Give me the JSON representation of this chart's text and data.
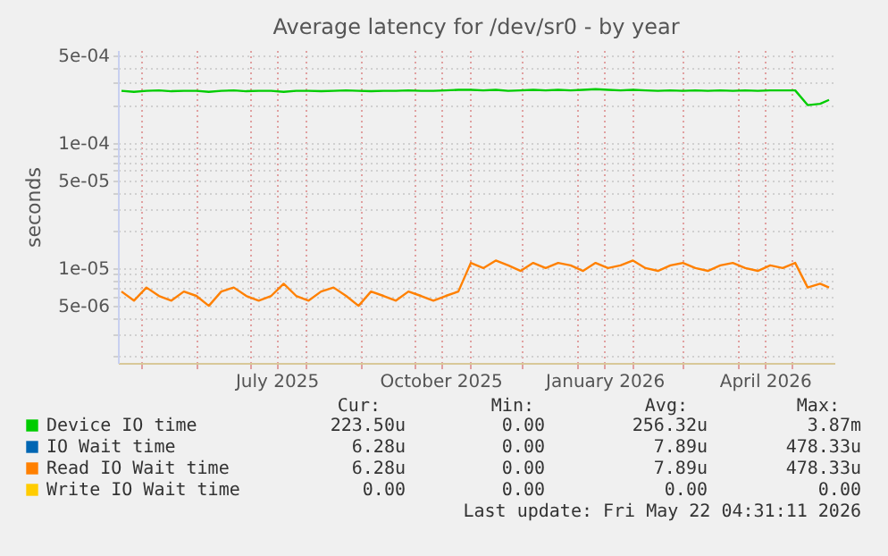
{
  "chart_data": {
    "type": "line",
    "title": "Average latency for /dev/sr0 - by year",
    "ylabel": "seconds",
    "x": [
      "2025-04-20",
      "2025-04-27",
      "2025-05-04",
      "2025-05-11",
      "2025-05-18",
      "2025-05-25",
      "2025-06-01",
      "2025-06-08",
      "2025-06-15",
      "2025-06-22",
      "2025-06-29",
      "2025-07-06",
      "2025-07-13",
      "2025-07-20",
      "2025-07-27",
      "2025-08-03",
      "2025-08-10",
      "2025-08-17",
      "2025-08-24",
      "2025-08-31",
      "2025-09-07",
      "2025-09-14",
      "2025-09-21",
      "2025-09-28",
      "2025-10-05",
      "2025-10-12",
      "2025-10-19",
      "2025-10-26",
      "2025-11-02",
      "2025-11-09",
      "2025-11-16",
      "2025-11-23",
      "2025-11-30",
      "2025-12-07",
      "2025-12-14",
      "2025-12-21",
      "2025-12-28",
      "2026-01-04",
      "2026-01-11",
      "2026-01-18",
      "2026-01-25",
      "2026-02-01",
      "2026-02-08",
      "2026-02-15",
      "2026-02-22",
      "2026-03-01",
      "2026-03-08",
      "2026-03-15",
      "2026-03-22",
      "2026-03-29",
      "2026-04-05",
      "2026-04-12",
      "2026-04-19",
      "2026-04-26",
      "2026-05-03",
      "2026-05-10",
      "2026-05-17",
      "2026-05-22"
    ],
    "series": [
      {
        "name": "Device IO time",
        "color": "#00cc00",
        "values": [
          0.00026,
          0.000255,
          0.00026,
          0.000262,
          0.000258,
          0.00026,
          0.00026,
          0.000255,
          0.00026,
          0.000262,
          0.000258,
          0.00026,
          0.00026,
          0.000255,
          0.00026,
          0.00026,
          0.000258,
          0.00026,
          0.000262,
          0.00026,
          0.000258,
          0.00026,
          0.00026,
          0.000262,
          0.00026,
          0.00026,
          0.000262,
          0.000265,
          0.000265,
          0.000262,
          0.000265,
          0.00026,
          0.000262,
          0.000265,
          0.000262,
          0.000265,
          0.000262,
          0.000265,
          0.000268,
          0.000265,
          0.000262,
          0.000265,
          0.000262,
          0.00026,
          0.000262,
          0.00026,
          0.000262,
          0.00026,
          0.000262,
          0.00026,
          0.000262,
          0.00026,
          0.000262,
          0.000262,
          0.000262,
          0.0002,
          0.000205,
          0.00022
        ]
      },
      {
        "name": "IO Wait time",
        "color": "#0066b3",
        "values": [
          null,
          null,
          null,
          null,
          null,
          null,
          null,
          null,
          null,
          null,
          null,
          null,
          null,
          null,
          null,
          null,
          null,
          null,
          null,
          null,
          null,
          null,
          null,
          null,
          null,
          null,
          null,
          null,
          null,
          null,
          null,
          null,
          null,
          null,
          null,
          null,
          null,
          null,
          null,
          null,
          null,
          null,
          null,
          null,
          null,
          null,
          null,
          null,
          null,
          null,
          null,
          null,
          null,
          null,
          null,
          null,
          null,
          null
        ]
      },
      {
        "name": "Read IO Wait time",
        "color": "#ff8000",
        "values": [
          6.5e-06,
          5.5e-06,
          7e-06,
          6e-06,
          5.5e-06,
          6.5e-06,
          6e-06,
          5e-06,
          6.5e-06,
          7e-06,
          6e-06,
          5.5e-06,
          6e-06,
          7.5e-06,
          6e-06,
          5.5e-06,
          6.5e-06,
          7e-06,
          6e-06,
          5e-06,
          6.5e-06,
          6e-06,
          5.5e-06,
          6.5e-06,
          6e-06,
          5.5e-06,
          6e-06,
          6.5e-06,
          1.1e-05,
          1e-05,
          1.15e-05,
          1.05e-05,
          9.5e-06,
          1.1e-05,
          1e-05,
          1.1e-05,
          1.05e-05,
          9.5e-06,
          1.1e-05,
          1e-05,
          1.05e-05,
          1.15e-05,
          1e-05,
          9.5e-06,
          1.05e-05,
          1.1e-05,
          1e-05,
          9.5e-06,
          1.05e-05,
          1.1e-05,
          1e-05,
          9.5e-06,
          1.05e-05,
          1e-05,
          1.1e-05,
          7e-06,
          7.5e-06,
          7e-06
        ]
      },
      {
        "name": "Write IO Wait time",
        "color": "#ffcc00",
        "values": [
          null,
          null,
          null,
          null,
          null,
          null,
          null,
          null,
          null,
          null,
          null,
          null,
          null,
          null,
          null,
          null,
          null,
          null,
          null,
          null,
          null,
          null,
          null,
          null,
          null,
          null,
          null,
          null,
          null,
          null,
          null,
          null,
          null,
          null,
          null,
          null,
          null,
          null,
          null,
          null,
          null,
          null,
          null,
          null,
          null,
          null,
          null,
          null,
          null,
          null,
          null,
          null,
          null,
          null,
          null,
          null,
          null,
          null
        ]
      }
    ],
    "log": "y",
    "ylim": [
      1.75e-06,
      0.00055
    ],
    "yticks": [
      {
        "value": 2e-06,
        "label": null
      },
      {
        "value": 3e-06,
        "label": null
      },
      {
        "value": 4e-06,
        "label": null
      },
      {
        "value": 5e-06,
        "label": "5e-06"
      },
      {
        "value": 6e-06,
        "label": null
      },
      {
        "value": 7e-06,
        "label": null
      },
      {
        "value": 8e-06,
        "label": null
      },
      {
        "value": 9e-06,
        "label": null
      },
      {
        "value": 1e-05,
        "label": "1e-05"
      },
      {
        "value": 2e-05,
        "label": null
      },
      {
        "value": 3e-05,
        "label": null
      },
      {
        "value": 4e-05,
        "label": null
      },
      {
        "value": 5e-05,
        "label": "5e-05"
      },
      {
        "value": 6e-05,
        "label": null
      },
      {
        "value": 7e-05,
        "label": null
      },
      {
        "value": 8e-05,
        "label": null
      },
      {
        "value": 9e-05,
        "label": null
      },
      {
        "value": 0.0001,
        "label": "1e-04"
      },
      {
        "value": 0.0002,
        "label": null
      },
      {
        "value": 0.0003,
        "label": null
      },
      {
        "value": 0.0004,
        "label": null
      },
      {
        "value": 0.0005,
        "label": "5e-04"
      }
    ],
    "xlim": [
      "2025-04-18",
      "2026-05-25"
    ],
    "xticks": [
      {
        "value": "2025-05-01",
        "label": null
      },
      {
        "value": "2025-06-01",
        "label": null
      },
      {
        "value": "2025-07-01",
        "label": null
      },
      {
        "value": "2025-07-16",
        "label": "July 2025"
      },
      {
        "value": "2025-08-01",
        "label": null
      },
      {
        "value": "2025-09-01",
        "label": null
      },
      {
        "value": "2025-10-01",
        "label": null
      },
      {
        "value": "2025-10-16",
        "label": "October 2025"
      },
      {
        "value": "2025-11-01",
        "label": null
      },
      {
        "value": "2025-12-01",
        "label": null
      },
      {
        "value": "2026-01-01",
        "label": null
      },
      {
        "value": "2026-01-16",
        "label": "January 2026"
      },
      {
        "value": "2026-02-01",
        "label": null
      },
      {
        "value": "2026-03-01",
        "label": null
      },
      {
        "value": "2026-04-01",
        "label": null
      },
      {
        "value": "2026-04-16",
        "label": "April 2026"
      },
      {
        "value": "2026-05-01",
        "label": null
      }
    ],
    "grid": true,
    "legend": "bottom",
    "line_style": "solid",
    "marker": "none",
    "annotations": [
      "Cur:",
      "Min:",
      "Avg:",
      "Max:",
      "223.50u",
      "0.00",
      "256.32u",
      "3.87m",
      "6.28u",
      "0.00",
      "7.89u",
      "478.33u",
      "6.28u",
      "0.00",
      "7.89u",
      "478.33u",
      "0.00",
      "0.00",
      "0.00",
      "0.00",
      "Last update: Fri May 22 04:31:11 2026"
    ]
  }
}
